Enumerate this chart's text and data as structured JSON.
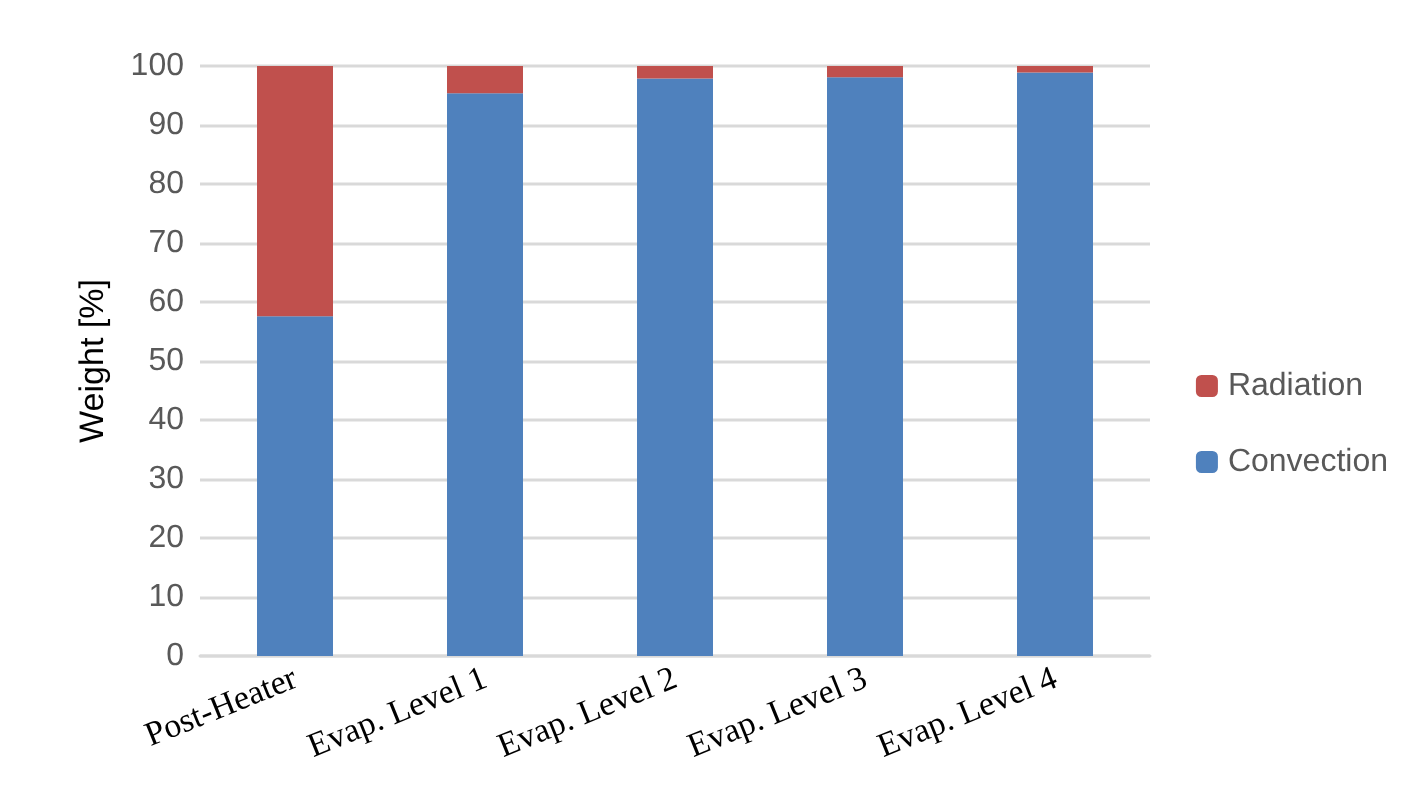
{
  "chart_data": {
    "type": "bar",
    "stacked": true,
    "ylabel": "Weight [%]",
    "categories": [
      "Post-Heater",
      "Evap. Level 1",
      "Evap. Level 2",
      "Evap. Level 3",
      "Evap. Level 4"
    ],
    "series": [
      {
        "name": "Convection",
        "color": "#4f81bd",
        "values": [
          57.6,
          95.4,
          97.9,
          98.1,
          98.9
        ]
      },
      {
        "name": "Radiation",
        "color": "#c0504d",
        "values": [
          42.4,
          4.6,
          2.1,
          1.9,
          1.1
        ]
      }
    ],
    "ylim": [
      0,
      100
    ],
    "yticks": [
      0,
      10,
      20,
      30,
      40,
      50,
      60,
      70,
      80,
      90,
      100
    ],
    "grid": "y",
    "legend": "right"
  }
}
